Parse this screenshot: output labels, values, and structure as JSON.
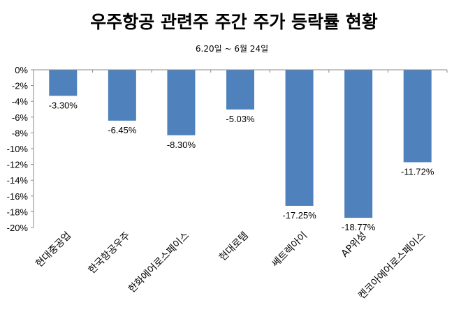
{
  "chart_data": {
    "type": "bar",
    "title": "우주항공 관련주  주간 주가 등락률 현황",
    "subtitle": "6.20일 ~ 6월 24일",
    "categories": [
      "현대중공업",
      "한국항공우주",
      "한화에어로스페이스",
      "현대로템",
      "쎄트렉아이",
      "AP위성",
      "켄코아에어로스페이스"
    ],
    "values": [
      -3.3,
      -6.45,
      -8.3,
      -5.03,
      -17.25,
      -18.77,
      -11.72
    ],
    "data_labels": [
      "-3.30%",
      "-6.45%",
      "-8.30%",
      "-5.03%",
      "-17.25%",
      "-18.77%",
      "-11.72%"
    ],
    "ylim": [
      -20,
      0
    ],
    "yticks": [
      "0%",
      "-2%",
      "-4%",
      "-6%",
      "-8%",
      "-10%",
      "-12%",
      "-14%",
      "-16%",
      "-18%",
      "-20%"
    ],
    "xlabel": "",
    "ylabel": "",
    "grid": false,
    "legend": "none",
    "bar_color": "#4F81BD"
  }
}
